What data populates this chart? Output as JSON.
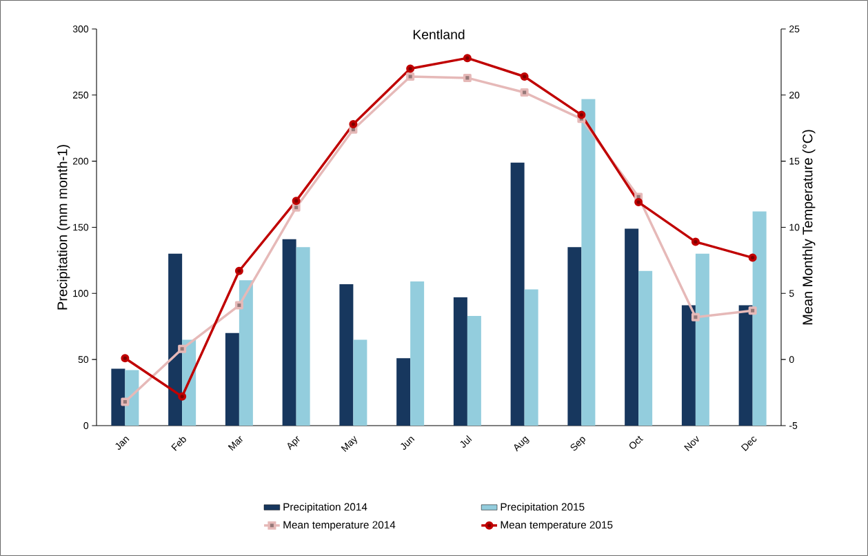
{
  "chart_data": {
    "type": "bar",
    "title": "Kentland",
    "ylabel": "Precipitation (mm month-1)",
    "y2label": "Mean Monthly Temperature (°C)",
    "categories": [
      "Jan",
      "Feb",
      "Mar",
      "Apr",
      "May",
      "Jun",
      "Jul",
      "Aug",
      "Sep",
      "Oct",
      "Nov",
      "Dec"
    ],
    "series": [
      {
        "name": "Precipitation 2014",
        "color": "#17375e",
        "values": [
          43,
          130,
          70,
          141,
          107,
          51,
          97,
          199,
          135,
          149,
          91,
          91
        ]
      },
      {
        "name": "Precipitation 2015",
        "color": "#93cddd",
        "values": [
          42,
          65,
          110,
          135,
          65,
          109,
          83,
          103,
          247,
          117,
          130,
          162
        ]
      },
      {
        "name": "Mean temperature 2014",
        "type": "line",
        "axis": "y2",
        "marker": "square",
        "color": "#e6b9b8",
        "values": [
          -3.2,
          0.8,
          4.1,
          11.5,
          17.4,
          21.4,
          21.3,
          20.2,
          18.2,
          12.3,
          3.2,
          3.7
        ]
      },
      {
        "name": "Mean temperature 2015",
        "type": "line",
        "axis": "y2",
        "marker": "circle",
        "color": "#c00000",
        "values": [
          0.1,
          -2.8,
          6.7,
          12.0,
          17.8,
          22.0,
          22.8,
          21.4,
          18.5,
          11.9,
          8.9,
          7.7
        ]
      }
    ],
    "ylim": [
      0,
      300
    ],
    "yticks": [
      0,
      50,
      100,
      150,
      200,
      250,
      300
    ],
    "y2lim": [
      -5,
      25
    ],
    "y2ticks": [
      -5,
      0,
      5,
      10,
      15,
      20,
      25
    ],
    "legend": "bottom",
    "line_style": "solid"
  }
}
